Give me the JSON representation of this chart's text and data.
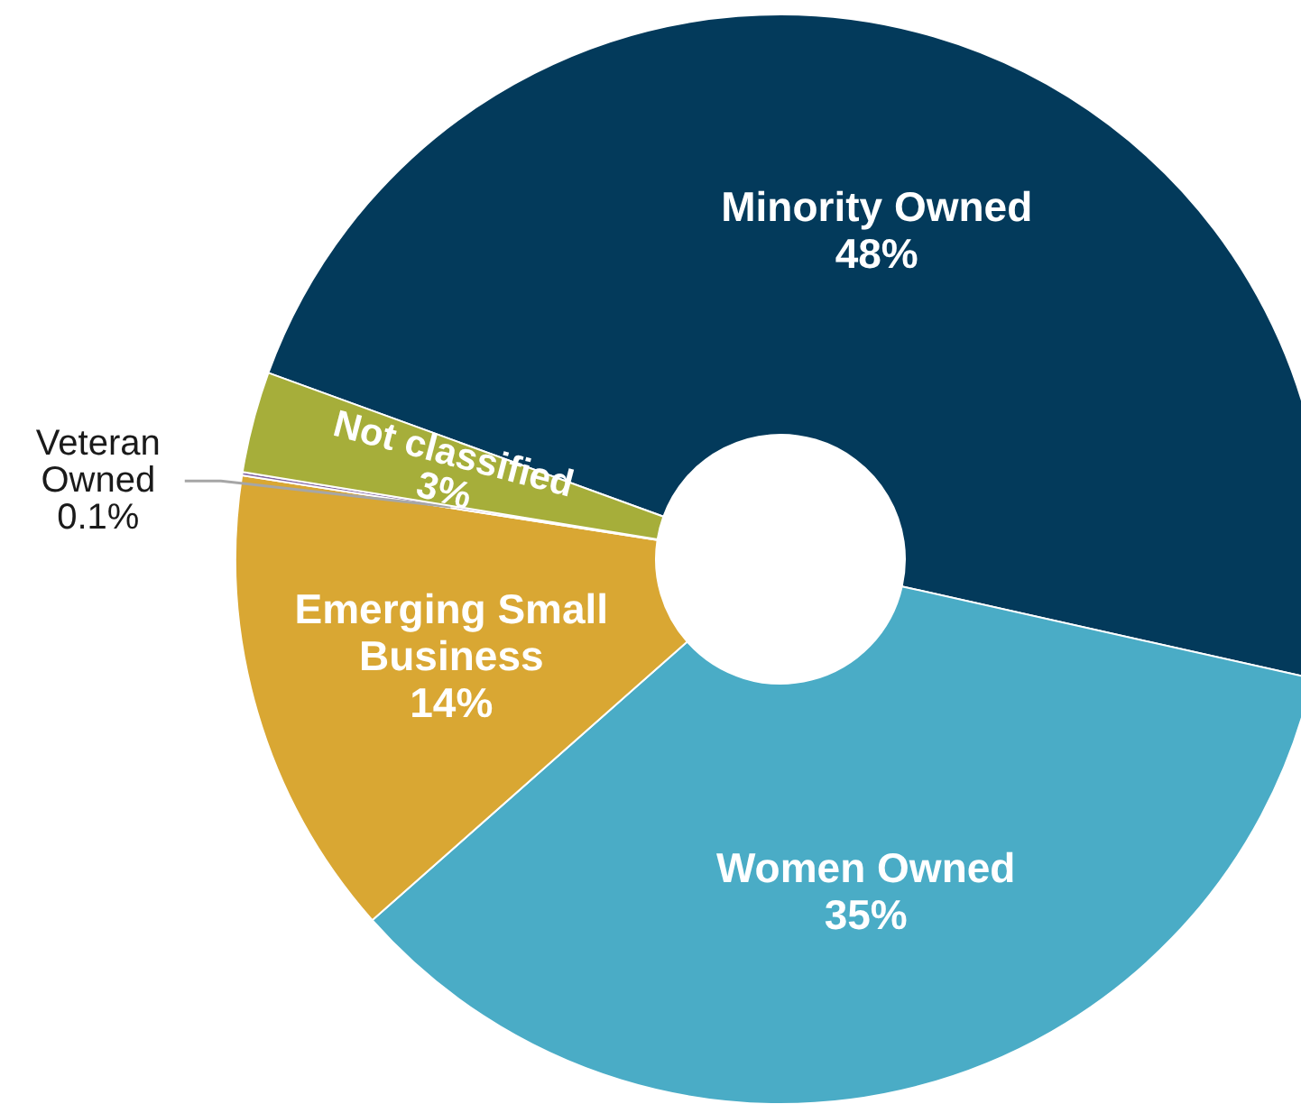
{
  "chart_data": {
    "type": "donut",
    "categories": [
      "Minority Owned",
      "Women Owned",
      "Emerging Small Business",
      "Veteran Owned",
      "Not classified"
    ],
    "values": [
      48,
      35,
      14,
      0.1,
      3
    ],
    "colors": [
      "#033a5b",
      "#4aacc6",
      "#d9a733",
      "#8064a2",
      "#a6ae3a"
    ],
    "value_labels": [
      "48%",
      "35%",
      "14%",
      "0.1%",
      "3%"
    ]
  }
}
